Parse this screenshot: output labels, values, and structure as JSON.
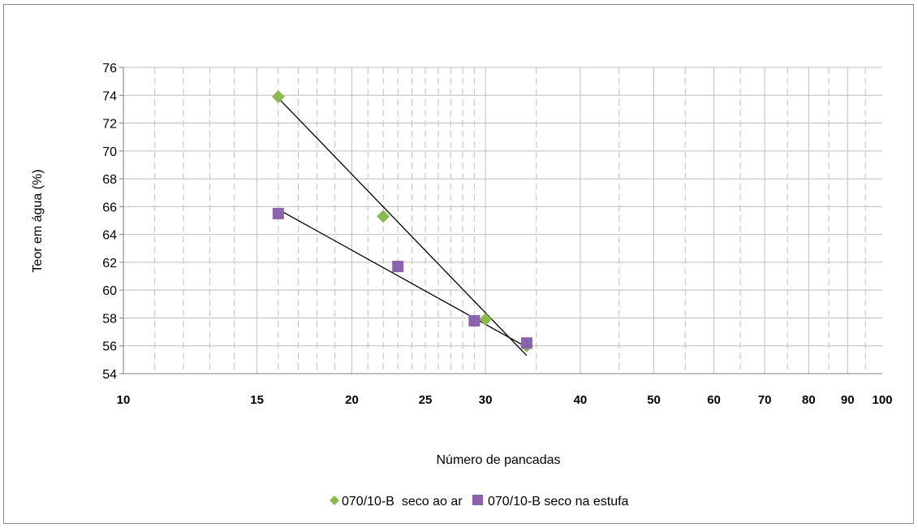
{
  "chart_data": {
    "type": "scatter",
    "title": "",
    "xlabel": "Número de pancadas",
    "ylabel": "Teor em água (%)",
    "xscale": "log",
    "xlim": [
      10,
      100
    ],
    "ylim": [
      54,
      76
    ],
    "y_ticks": [
      "54",
      "56",
      "58",
      "60",
      "62",
      "64",
      "66",
      "68",
      "70",
      "72",
      "74",
      "76"
    ],
    "x_tick_labels": [
      {
        "value": 10,
        "label": "10"
      },
      {
        "value": 15,
        "label": "15"
      },
      {
        "value": 20,
        "label": "20"
      },
      {
        "value": 25,
        "label": "25"
      },
      {
        "value": 30,
        "label": "30"
      },
      {
        "value": 40,
        "label": "40"
      },
      {
        "value": 50,
        "label": "50"
      },
      {
        "value": 60,
        "label": "60"
      },
      {
        "value": 70,
        "label": "70"
      },
      {
        "value": 80,
        "label": "80"
      },
      {
        "value": 90,
        "label": "90"
      },
      {
        "value": 100,
        "label": "100"
      }
    ],
    "x_gridlines": [
      11,
      12,
      13,
      14,
      15,
      16,
      17,
      18,
      19,
      20,
      21,
      22,
      23,
      24,
      25,
      26,
      27,
      28,
      29,
      30,
      35,
      40,
      45,
      50,
      55,
      60,
      65,
      70,
      75,
      80,
      85,
      90,
      95
    ],
    "x_solid_gridlines": [
      15,
      20,
      30,
      40,
      50,
      60,
      70,
      80,
      90
    ],
    "grid": true,
    "legend_position": "bottom",
    "series": [
      {
        "name": "070/10-B  seco ao ar",
        "marker": "diamond",
        "color": "#8db94f",
        "points": [
          [
            16,
            73.9
          ],
          [
            22,
            65.3
          ],
          [
            30,
            57.9
          ],
          [
            34,
            56.0
          ]
        ],
        "trendline": [
          [
            16,
            73.8
          ],
          [
            34,
            55.3
          ]
        ]
      },
      {
        "name": "070/10-B seco na estufa",
        "marker": "square",
        "color": "#8a63ac",
        "points": [
          [
            16,
            65.5
          ],
          [
            23,
            61.7
          ],
          [
            29,
            57.8
          ],
          [
            34,
            56.2
          ]
        ],
        "trendline": [
          [
            16,
            65.8
          ],
          [
            34,
            55.9
          ]
        ]
      }
    ]
  }
}
